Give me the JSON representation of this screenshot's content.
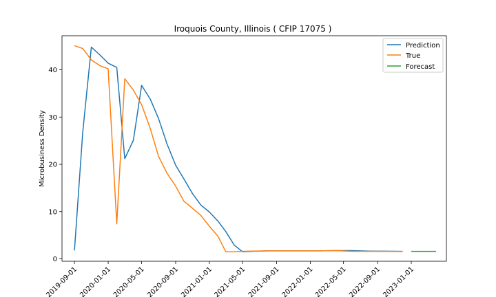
{
  "chart_data": {
    "type": "line",
    "title": "Iroquois County, Illinois ( CFIP 17075 )",
    "xlabel": "",
    "ylabel": "Microbusiness Density",
    "x_axis": {
      "type": "date",
      "range": [
        "2019-07-18",
        "2023-05-08"
      ],
      "ticks": [
        "2019-09-01",
        "2020-01-01",
        "2020-05-01",
        "2020-09-01",
        "2021-01-01",
        "2021-05-01",
        "2021-09-01",
        "2022-01-01",
        "2022-05-01",
        "2022-09-01",
        "2023-01-01"
      ]
    },
    "y_axis": {
      "range": [
        -0.5,
        47.2
      ],
      "ticks": [
        0,
        10,
        20,
        30,
        40
      ]
    },
    "grid": false,
    "legend": {
      "position": "top-right",
      "entries": [
        "Prediction",
        "True",
        "Forecast"
      ]
    },
    "series": [
      {
        "name": "Prediction",
        "color": "#1f77b4",
        "points": [
          [
            "2019-09-01",
            1.8
          ],
          [
            "2019-10-01",
            26.8
          ],
          [
            "2019-11-01",
            44.8
          ],
          [
            "2019-12-01",
            43.2
          ],
          [
            "2020-01-01",
            41.4
          ],
          [
            "2020-02-01",
            40.5
          ],
          [
            "2020-03-01",
            21.2
          ],
          [
            "2020-04-01",
            25.1
          ],
          [
            "2020-05-01",
            36.7
          ],
          [
            "2020-06-01",
            33.8
          ],
          [
            "2020-07-01",
            29.7
          ],
          [
            "2020-08-01",
            24.3
          ],
          [
            "2020-09-01",
            19.8
          ],
          [
            "2020-10-01",
            16.9
          ],
          [
            "2020-11-01",
            13.8
          ],
          [
            "2020-12-01",
            11.4
          ],
          [
            "2021-01-01",
            9.9
          ],
          [
            "2021-02-01",
            8.0
          ],
          [
            "2021-03-01",
            5.8
          ],
          [
            "2021-04-01",
            2.9
          ],
          [
            "2021-05-01",
            1.5
          ],
          [
            "2021-06-01",
            1.6
          ],
          [
            "2021-08-01",
            1.7
          ],
          [
            "2021-10-01",
            1.7
          ],
          [
            "2021-12-01",
            1.7
          ],
          [
            "2022-02-01",
            1.7
          ],
          [
            "2022-04-01",
            1.75
          ],
          [
            "2022-06-01",
            1.75
          ],
          [
            "2022-08-01",
            1.65
          ],
          [
            "2022-10-01",
            1.62
          ],
          [
            "2022-12-01",
            1.6
          ]
        ]
      },
      {
        "name": "True",
        "color": "#ff7f0e",
        "points": [
          [
            "2019-09-01",
            45.1
          ],
          [
            "2019-10-01",
            44.5
          ],
          [
            "2019-11-01",
            42.1
          ],
          [
            "2019-12-01",
            40.9
          ],
          [
            "2020-01-01",
            40.2
          ],
          [
            "2020-02-01",
            7.4
          ],
          [
            "2020-03-01",
            38.1
          ],
          [
            "2020-04-01",
            35.7
          ],
          [
            "2020-05-01",
            32.6
          ],
          [
            "2020-06-01",
            27.6
          ],
          [
            "2020-07-01",
            21.7
          ],
          [
            "2020-08-01",
            18.1
          ],
          [
            "2020-09-01",
            15.4
          ],
          [
            "2020-10-01",
            12.2
          ],
          [
            "2020-11-01",
            10.7
          ],
          [
            "2020-12-01",
            9.2
          ],
          [
            "2021-01-01",
            6.9
          ],
          [
            "2021-02-01",
            4.8
          ],
          [
            "2021-03-01",
            1.5
          ],
          [
            "2021-04-01",
            1.5
          ],
          [
            "2021-05-01",
            1.6
          ],
          [
            "2021-06-01",
            1.65
          ],
          [
            "2021-08-01",
            1.7
          ],
          [
            "2021-10-01",
            1.7
          ],
          [
            "2021-12-01",
            1.7
          ],
          [
            "2022-02-01",
            1.7
          ],
          [
            "2022-04-01",
            1.75
          ],
          [
            "2022-06-01",
            1.6
          ],
          [
            "2022-08-01",
            1.6
          ],
          [
            "2022-10-01",
            1.6
          ],
          [
            "2022-12-01",
            1.55
          ]
        ]
      },
      {
        "name": "Forecast",
        "color": "#2ca02c",
        "points": [
          [
            "2023-01-01",
            1.6
          ],
          [
            "2023-02-01",
            1.6
          ],
          [
            "2023-03-01",
            1.6
          ],
          [
            "2023-04-01",
            1.6
          ]
        ]
      }
    ]
  }
}
